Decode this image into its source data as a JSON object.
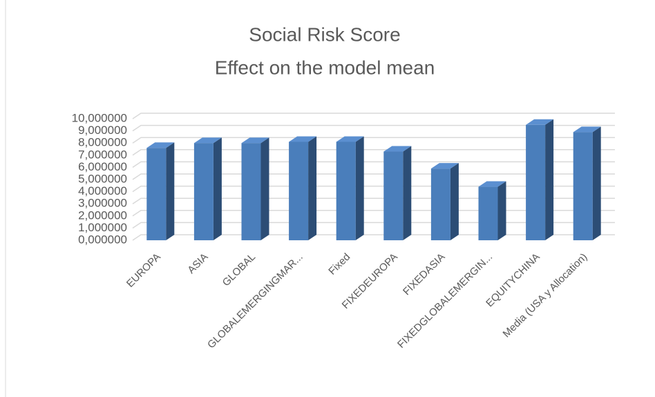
{
  "chart_data": {
    "type": "bar3d",
    "title": "Social  Risk Score",
    "subtitle": "Effect on the model mean",
    "categories": [
      "EUROPA",
      "ASIA",
      "GLOBAL",
      "GLOBALEMERGINGMAR...",
      "Fixed",
      "FIXEDEUROPA",
      "FIXEDASIA",
      "FIXEDGLOBALEMERGIN...",
      "EQUITYCHINA",
      "Media (USA y Allocation)"
    ],
    "values": [
      7.6,
      8.0,
      8.0,
      8.1,
      8.1,
      7.3,
      5.9,
      4.4,
      9.5,
      8.9
    ],
    "color": "#4a7ebb",
    "ylim": [
      0,
      10
    ],
    "yticks": [
      {
        "value": 0,
        "label": "0,000000"
      },
      {
        "value": 1,
        "label": "1,000000"
      },
      {
        "value": 2,
        "label": "2,000000"
      },
      {
        "value": 3,
        "label": "3,000000"
      },
      {
        "value": 4,
        "label": "4,000000"
      },
      {
        "value": 5,
        "label": "5,000000"
      },
      {
        "value": 6,
        "label": "6,000000"
      },
      {
        "value": 7,
        "label": "7,000000"
      },
      {
        "value": 8,
        "label": "8,000000"
      },
      {
        "value": 9,
        "label": "9,000000"
      },
      {
        "value": 10,
        "label": "10,000000"
      }
    ],
    "grid": true
  }
}
